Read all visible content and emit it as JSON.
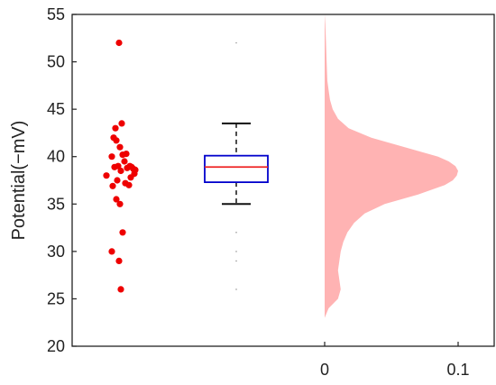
{
  "chart_data": {
    "type": "scatter",
    "subtype": "raincloud (jitter points + boxplot + density)",
    "title": "",
    "ylabel": "Potential(−mV)",
    "ylim": [
      20,
      55
    ],
    "y_ticks": [
      20,
      25,
      30,
      35,
      40,
      45,
      50,
      55
    ],
    "density_x_ticks": [
      0,
      0.1
    ],
    "density_x_tick_labels": [
      "0",
      "0.1"
    ],
    "grid": false,
    "colors": {
      "points": "#ee0000",
      "box": "#0000cc",
      "median": "#ee2222",
      "whisker": "#111111",
      "density": "#ffb3b3"
    },
    "points": [
      52.0,
      43.5,
      43.0,
      42.0,
      41.7,
      41.0,
      40.2,
      40.0,
      40.3,
      39.5,
      39.0,
      39.0,
      38.9,
      38.9,
      38.8,
      38.7,
      38.6,
      38.5,
      38.2,
      38.0,
      37.8,
      37.5,
      37.2,
      37.0,
      36.9,
      35.5,
      35.0,
      32.0,
      30.0,
      29.0,
      26.0
    ],
    "boxplot": {
      "whisker_low": 35.0,
      "q1": 37.3,
      "median": 38.9,
      "q3": 40.1,
      "whisker_high": 43.5,
      "outliers": [
        52.0,
        32.0,
        30.0,
        29.0,
        26.0
      ]
    },
    "density": {
      "y": [
        23,
        24,
        25,
        26,
        27,
        28,
        29,
        30,
        31,
        32,
        33,
        34,
        35,
        36,
        37,
        37.5,
        38,
        38.5,
        39,
        39.5,
        40,
        41,
        42,
        43,
        44,
        45,
        46,
        47,
        48,
        50,
        52,
        54,
        55
      ],
      "values": [
        0.0,
        0.003,
        0.01,
        0.012,
        0.011,
        0.01,
        0.011,
        0.012,
        0.014,
        0.017,
        0.022,
        0.03,
        0.045,
        0.07,
        0.09,
        0.096,
        0.099,
        0.1,
        0.098,
        0.093,
        0.085,
        0.06,
        0.035,
        0.018,
        0.01,
        0.006,
        0.004,
        0.003,
        0.002,
        0.0015,
        0.001,
        0.0005,
        0.0
      ]
    }
  }
}
